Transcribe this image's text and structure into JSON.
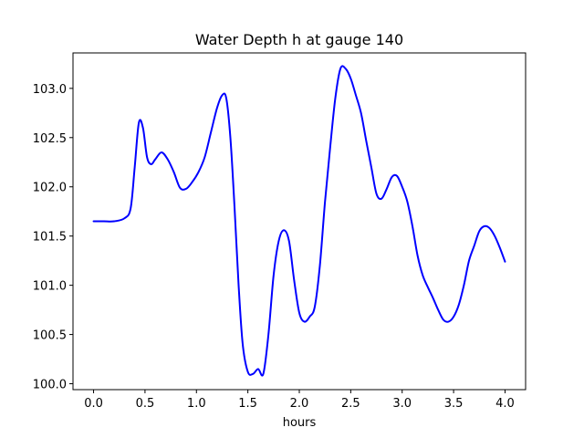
{
  "chart_data": {
    "type": "line",
    "title": "Water Depth h at gauge 140",
    "xlabel": "hours",
    "ylabel": "",
    "xlim": [
      -0.2,
      4.2
    ],
    "ylim": [
      99.94,
      103.36
    ],
    "xticks": [
      0.0,
      0.5,
      1.0,
      1.5,
      2.0,
      2.5,
      3.0,
      3.5,
      4.0
    ],
    "xtick_labels": [
      "0.0",
      "0.5",
      "1.0",
      "1.5",
      "2.0",
      "2.5",
      "3.0",
      "3.5",
      "4.0"
    ],
    "yticks": [
      100.0,
      100.5,
      101.0,
      101.5,
      102.0,
      102.5,
      103.0
    ],
    "ytick_labels": [
      "100.0",
      "100.5",
      "101.0",
      "101.5",
      "102.0",
      "102.5",
      "103.0"
    ],
    "grid": false,
    "series": [
      {
        "color": "#0000ff",
        "x": [
          0.0,
          0.1,
          0.2,
          0.3,
          0.36,
          0.4,
          0.44,
          0.48,
          0.52,
          0.56,
          0.6,
          0.66,
          0.72,
          0.78,
          0.84,
          0.9,
          0.96,
          1.02,
          1.08,
          1.14,
          1.2,
          1.25,
          1.29,
          1.33,
          1.37,
          1.41,
          1.45,
          1.5,
          1.55,
          1.6,
          1.65,
          1.7,
          1.75,
          1.8,
          1.85,
          1.9,
          1.95,
          2.0,
          2.05,
          2.1,
          2.15,
          2.2,
          2.25,
          2.3,
          2.35,
          2.4,
          2.45,
          2.5,
          2.55,
          2.6,
          2.65,
          2.7,
          2.75,
          2.8,
          2.85,
          2.9,
          2.95,
          3.0,
          3.05,
          3.1,
          3.15,
          3.2,
          3.25,
          3.3,
          3.35,
          3.4,
          3.45,
          3.5,
          3.55,
          3.6,
          3.65,
          3.7,
          3.75,
          3.8,
          3.85,
          3.9,
          3.95,
          4.0
        ],
        "y": [
          101.65,
          101.65,
          101.65,
          101.68,
          101.78,
          102.2,
          102.65,
          102.6,
          102.3,
          102.23,
          102.28,
          102.35,
          102.28,
          102.15,
          101.99,
          101.98,
          102.05,
          102.15,
          102.3,
          102.55,
          102.8,
          102.93,
          102.9,
          102.5,
          101.8,
          101.0,
          100.4,
          100.12,
          100.1,
          100.15,
          100.1,
          100.5,
          101.1,
          101.45,
          101.56,
          101.45,
          101.05,
          100.72,
          100.63,
          100.68,
          100.78,
          101.2,
          101.85,
          102.4,
          102.9,
          103.2,
          103.2,
          103.1,
          102.93,
          102.75,
          102.47,
          102.2,
          101.93,
          101.88,
          101.98,
          102.1,
          102.11,
          102.0,
          101.85,
          101.6,
          101.3,
          101.1,
          100.98,
          100.87,
          100.75,
          100.65,
          100.63,
          100.68,
          100.8,
          101.0,
          101.25,
          101.4,
          101.55,
          101.6,
          101.58,
          101.5,
          101.38,
          101.24
        ]
      }
    ]
  }
}
